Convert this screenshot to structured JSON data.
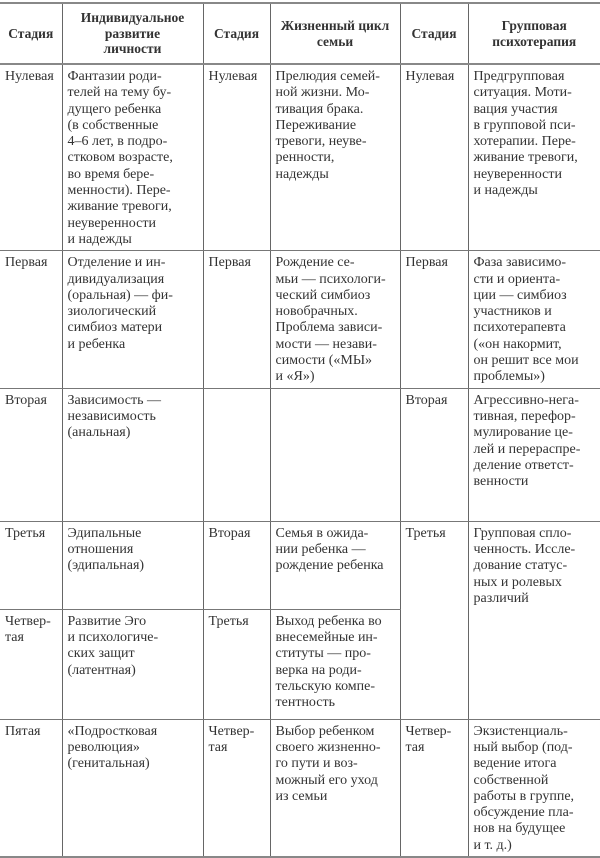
{
  "table": {
    "headers": [
      "Стадия",
      "Индивидуальное\nразвитие\nличности",
      "Стадия",
      "Жизненный цикл\nсемьи",
      "Стадия",
      "Групповая\nпсихотерапия"
    ],
    "rows": [
      [
        "Нулевая",
        "Фантазии роди-\nтелей на тему бу-\nдущего ребенка\n(в собственные\n4–6 лет, в подро-\nстковом возрасте,\nво время бере-\nменности). Пере-\nживание тревоги,\nнеуверенности\nи надежды",
        "Нулевая",
        "Прелюдия семей-\nной жизни. Мо-\nтивация брака.\nПереживание\nтревоги, неуве-\nренности,\nнадежды",
        "Нулевая",
        "Предгрупповая\nситуация. Моти-\nвация участия\nв групповой пси-\nхотерапии. Пере-\nживание тревоги,\nнеуверенности\nи надежды"
      ],
      [
        "Первая",
        "Отделение и ин-\nдивидуализация\n(оральная) — фи-\nзиологический\nсимбиоз матери\nи ребенка",
        "Первая",
        "Рождение се-\nмьи — психологи-\nческий симбиоз\nновобрачных.\nПроблема зависи-\nмости — незави-\nсимости («МЫ»\nи «Я»)",
        "Первая",
        "Фаза зависимо-\nсти и ориента-\nции — симбиоз\nучастников и\nпсихотерапевта\n(«он накормит,\nон решит все мои\nпроблемы»)"
      ],
      [
        "Вторая",
        "Зависимость —\nнезависимость\n(анальная)",
        "",
        "",
        "Вторая",
        "Агрессивно-нега-\nтивная, перефор-\nмулирование це-\nлей и перераспре-\nделение ответст-\nвенности"
      ],
      [
        "Третья",
        "Эдипальные\nотношения\n(эдипальная)",
        "Вторая",
        "Семья в ожида-\nнии ребенка —\nрождение ребенка",
        "Третья",
        "Групповая спло-\nченность. Иссле-\nдование статус-\nных и ролевых\nразличий"
      ],
      [
        "Четвер-\nтая",
        "Развитие Эго\nи психологиче-\nских защит\n(латентная)",
        "Третья",
        "Выход ребенка во\nвнесемейные ин-\nституты — про-\nверка на роди-\nтельскую компе-\nтентность"
      ],
      [
        "Пятая",
        "«Подростковая\nреволюция»\n(генитальная)",
        "Четвер-\nтая",
        "Выбор ребенком\nсвоего жизненно-\nго пути и воз-\nможный его уход\nиз семьи",
        "Четвер-\nтая",
        "Экзистенциаль-\nный выбор (под-\nведение итога\nсобственной\nработы в группе,\nобсуждение пла-\nнов на будущее\nи т. д.)"
      ]
    ]
  }
}
